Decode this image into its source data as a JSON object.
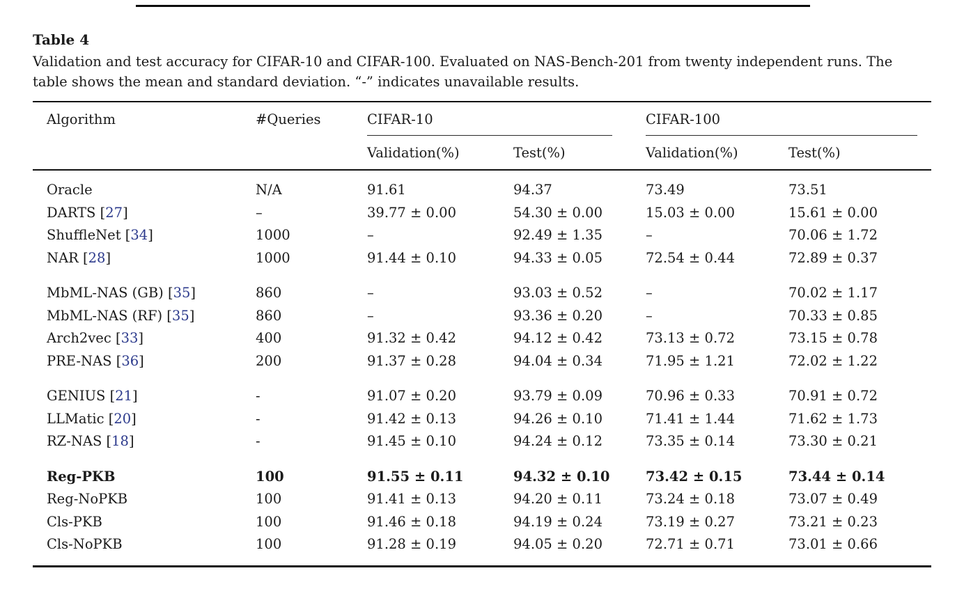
{
  "colors": {
    "text": "#1b1b1b",
    "citation_link": "#2c3a8c",
    "rule": "#111111",
    "background": "#ffffff"
  },
  "caption": {
    "label": "Table 4",
    "text": "Validation and test accuracy for CIFAR-10 and CIFAR-100. Evaluated on NAS-Bench-201 from twenty independent runs. The table shows the mean and standard deviation. “-” indicates unavailable results."
  },
  "table": {
    "header": {
      "algorithm": "Algorithm",
      "queries": "#Queries",
      "cifar10": "CIFAR-10",
      "cifar100": "CIFAR-100",
      "validation": "Validation(%)",
      "test": "Test(%)"
    },
    "cell_names": [
      "queries-cell",
      "cifar10-validation-cell",
      "cifar10-test-cell",
      "cifar100-validation-cell",
      "cifar100-test-cell"
    ],
    "groups": [
      {
        "rows": [
          {
            "algorithm": "Oracle",
            "cite": null,
            "bold": false,
            "cells": [
              "N/A",
              "91.61",
              "94.37",
              "73.49",
              "73.51"
            ]
          },
          {
            "algorithm": "DARTS",
            "cite": "27",
            "bold": false,
            "cells": [
              "–",
              "39.77 ± 0.00",
              "54.30 ± 0.00",
              "15.03 ± 0.00",
              "15.61 ± 0.00"
            ]
          },
          {
            "algorithm": "ShuffleNet",
            "cite": "34",
            "bold": false,
            "cells": [
              "1000",
              "–",
              "92.49 ± 1.35",
              "–",
              "70.06 ± 1.72"
            ]
          },
          {
            "algorithm": "NAR",
            "cite": "28",
            "bold": false,
            "cells": [
              "1000",
              "91.44 ± 0.10",
              "94.33 ± 0.05",
              "72.54 ± 0.44",
              "72.89 ± 0.37"
            ]
          }
        ]
      },
      {
        "rows": [
          {
            "algorithm": "MbML-NAS (GB)",
            "cite": "35",
            "bold": false,
            "cells": [
              "860",
              "–",
              "93.03 ± 0.52",
              "–",
              "70.02 ± 1.17"
            ]
          },
          {
            "algorithm": "MbML-NAS (RF)",
            "cite": "35",
            "bold": false,
            "cells": [
              "860",
              "–",
              "93.36 ± 0.20",
              "–",
              "70.33 ± 0.85"
            ]
          },
          {
            "algorithm": "Arch2vec",
            "cite": "33",
            "bold": false,
            "cells": [
              "400",
              "91.32 ± 0.42",
              "94.12 ± 0.42",
              "73.13 ± 0.72",
              "73.15 ± 0.78"
            ]
          },
          {
            "algorithm": "PRE-NAS",
            "cite": "36",
            "bold": false,
            "cells": [
              "200",
              "91.37 ± 0.28",
              "94.04 ± 0.34",
              "71.95 ± 1.21",
              "72.02 ± 1.22"
            ]
          }
        ]
      },
      {
        "rows": [
          {
            "algorithm": "GENIUS",
            "cite": "21",
            "bold": false,
            "cells": [
              "-",
              "91.07 ± 0.20",
              "93.79 ± 0.09",
              "70.96 ± 0.33",
              "70.91 ± 0.72"
            ]
          },
          {
            "algorithm": "LLMatic",
            "cite": "20",
            "bold": false,
            "cells": [
              "-",
              "91.42 ± 0.13",
              "94.26 ± 0.10",
              "71.41 ± 1.44",
              "71.62 ± 1.73"
            ]
          },
          {
            "algorithm": "RZ-NAS",
            "cite": "18",
            "bold": false,
            "cells": [
              "-",
              "91.45 ± 0.10",
              "94.24 ± 0.12",
              "73.35 ± 0.14",
              "73.30 ± 0.21"
            ]
          }
        ]
      },
      {
        "rows": [
          {
            "algorithm": "Reg-PKB",
            "cite": null,
            "bold": true,
            "cells": [
              "100",
              "91.55 ± 0.11",
              "94.32 ± 0.10",
              "73.42 ± 0.15",
              "73.44 ± 0.14"
            ]
          },
          {
            "algorithm": "Reg-NoPKB",
            "cite": null,
            "bold": false,
            "cells": [
              "100",
              "91.41 ± 0.13",
              "94.20 ± 0.11",
              "73.24 ± 0.18",
              "73.07 ± 0.49"
            ]
          },
          {
            "algorithm": "Cls-PKB",
            "cite": null,
            "bold": false,
            "cells": [
              "100",
              "91.46 ± 0.18",
              "94.19 ± 0.24",
              "73.19 ± 0.27",
              "73.21 ± 0.23"
            ]
          },
          {
            "algorithm": "Cls-NoPKB",
            "cite": null,
            "bold": false,
            "cells": [
              "100",
              "91.28 ± 0.19",
              "94.05 ± 0.20",
              "72.71 ± 0.71",
              "73.01 ± 0.66"
            ]
          }
        ]
      }
    ]
  }
}
